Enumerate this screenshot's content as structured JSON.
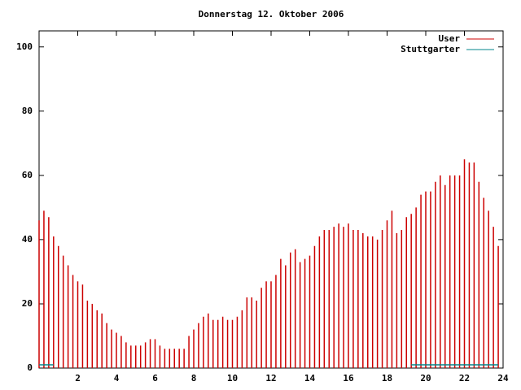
{
  "chart_data": {
    "type": "impulse",
    "title": "Donnerstag 12. Oktober 2006",
    "x": [
      0,
      0.25,
      0.5,
      0.75,
      1,
      1.25,
      1.5,
      1.75,
      2,
      2.25,
      2.5,
      2.75,
      3,
      3.25,
      3.5,
      3.75,
      4,
      4.25,
      4.5,
      4.75,
      5,
      5.25,
      5.5,
      5.75,
      6,
      6.25,
      6.5,
      6.75,
      7,
      7.25,
      7.5,
      7.75,
      8,
      8.25,
      8.5,
      8.75,
      9,
      9.25,
      9.5,
      9.75,
      10,
      10.25,
      10.5,
      10.75,
      11,
      11.25,
      11.5,
      11.75,
      12,
      12.25,
      12.5,
      12.75,
      13,
      13.25,
      13.5,
      13.75,
      14,
      14.25,
      14.5,
      14.75,
      15,
      15.25,
      15.5,
      15.75,
      16,
      16.25,
      16.5,
      16.75,
      17,
      17.25,
      17.5,
      17.75,
      18,
      18.25,
      18.5,
      18.75,
      19,
      19.25,
      19.5,
      19.75,
      20,
      20.25,
      20.5,
      20.75,
      21,
      21.25,
      21.5,
      21.75,
      22,
      22.25,
      22.5,
      22.75,
      23,
      23.25,
      23.5,
      23.75
    ],
    "series": [
      {
        "name": "User",
        "color": "#cc0000",
        "values": [
          46,
          49,
          47,
          41,
          38,
          35,
          32,
          29,
          27,
          26,
          21,
          20,
          18,
          17,
          14,
          12,
          11,
          10,
          8,
          7,
          7,
          7,
          8,
          9,
          9,
          7,
          6,
          6,
          6,
          6,
          6,
          10,
          12,
          14,
          16,
          17,
          15,
          15,
          16,
          15,
          15,
          16,
          18,
          22,
          22,
          21,
          25,
          27,
          27,
          29,
          34,
          32,
          36,
          37,
          33,
          34,
          35,
          38,
          41,
          43,
          43,
          44,
          45,
          44,
          45,
          43,
          43,
          42,
          41,
          41,
          40,
          43,
          46,
          49,
          42,
          43,
          47,
          48,
          50,
          54,
          55,
          55,
          58,
          60,
          57,
          60,
          60,
          60,
          65,
          64,
          64,
          58,
          53,
          49,
          44,
          38
        ]
      },
      {
        "name": "Stuttgarter",
        "color": "#00868b",
        "values": [
          1,
          1,
          1,
          1,
          null,
          null,
          null,
          null,
          null,
          null,
          null,
          null,
          null,
          null,
          null,
          null,
          null,
          null,
          null,
          null,
          null,
          null,
          null,
          null,
          null,
          null,
          null,
          null,
          null,
          null,
          null,
          null,
          null,
          null,
          null,
          null,
          null,
          null,
          null,
          null,
          null,
          null,
          null,
          null,
          null,
          null,
          null,
          null,
          null,
          null,
          null,
          null,
          null,
          null,
          null,
          null,
          null,
          null,
          null,
          null,
          null,
          null,
          null,
          null,
          null,
          null,
          null,
          null,
          null,
          null,
          null,
          null,
          null,
          null,
          null,
          null,
          null,
          1,
          1,
          1,
          1,
          1,
          1,
          1,
          1,
          1,
          1,
          1,
          1,
          1,
          1,
          1,
          1,
          1,
          1,
          1
        ]
      }
    ],
    "xlim": [
      0,
      24
    ],
    "xticks": [
      2,
      4,
      6,
      8,
      10,
      12,
      14,
      16,
      18,
      20,
      22,
      24
    ],
    "ylim": [
      0,
      105
    ],
    "yticks": [
      0,
      20,
      40,
      60,
      80,
      100
    ],
    "legend": "top-right"
  }
}
